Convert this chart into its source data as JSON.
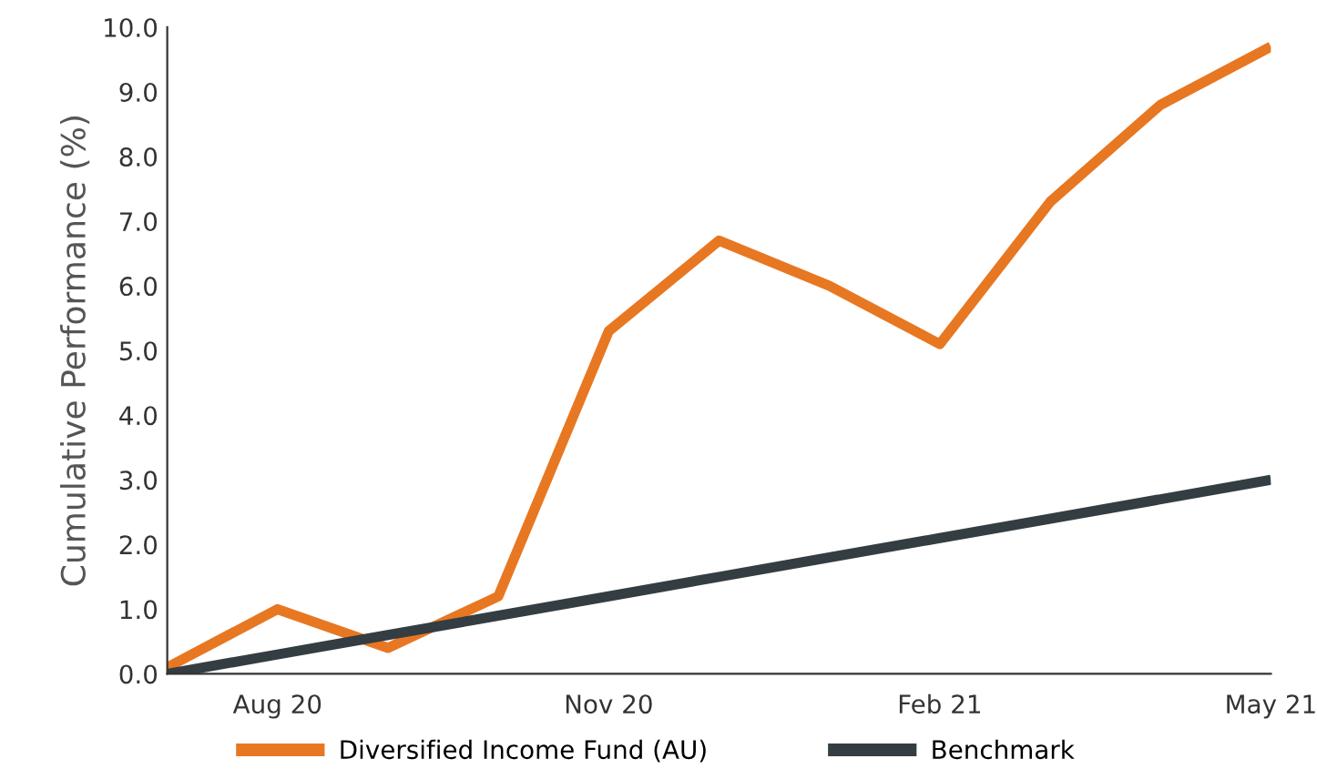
{
  "chart_data": {
    "type": "line",
    "ylabel": "Cumulative Performance (%)",
    "categories": [
      null,
      "Aug 20",
      null,
      null,
      "Nov 20",
      null,
      null,
      "Feb 21",
      null,
      null,
      "May 21"
    ],
    "series": [
      {
        "name": "Diversified Income Fund (AU)",
        "color": "#e87722",
        "values": [
          0.1,
          1.0,
          0.4,
          1.2,
          5.3,
          6.7,
          6.0,
          5.1,
          7.3,
          8.8,
          9.7
        ]
      },
      {
        "name": "Benchmark",
        "color": "#343d42",
        "values": [
          0.0,
          0.3,
          0.6,
          0.9,
          1.2,
          1.5,
          1.8,
          2.1,
          2.4,
          2.7,
          3.0
        ]
      }
    ],
    "ylim": [
      0,
      10
    ],
    "yticks": [
      {
        "value": 0,
        "label": "0.0"
      },
      {
        "value": 1,
        "label": "1.0"
      },
      {
        "value": 2,
        "label": "2.0"
      },
      {
        "value": 3,
        "label": "3.0"
      },
      {
        "value": 4,
        "label": "4.0"
      },
      {
        "value": 5,
        "label": "5.0"
      },
      {
        "value": 6,
        "label": "6.0"
      },
      {
        "value": 7,
        "label": "7.0"
      },
      {
        "value": 8,
        "label": "8.0"
      },
      {
        "value": 9,
        "label": "9.0"
      },
      {
        "value": 10,
        "label": "10.0"
      }
    ],
    "grid": false,
    "legend": "bottom",
    "marker": "none",
    "line_style": "solid"
  }
}
